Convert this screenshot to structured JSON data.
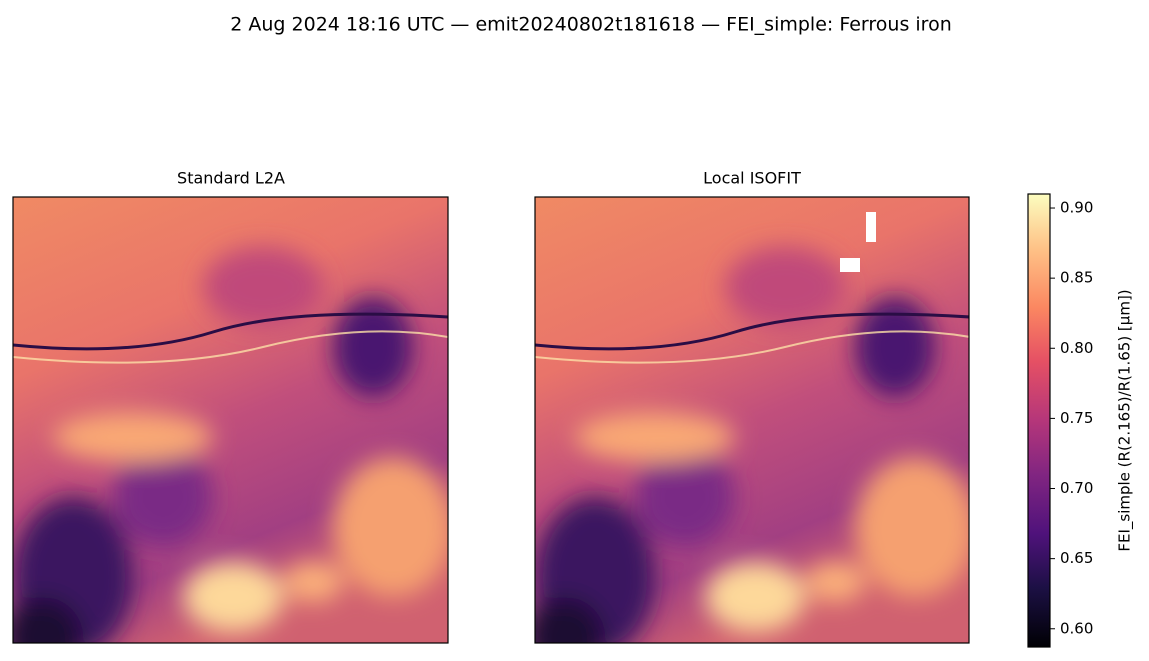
{
  "chart_data": {
    "type": "image",
    "title": "2 Aug 2024 18:16 UTC — emit20240802t181618 — FEI_simple: Ferrous iron",
    "panels": [
      "Standard L2A",
      "Local ISOFIT"
    ],
    "colormap": "magma",
    "colorbar_label": "FEI_simple  (R(2.165)/R(1.65)  [µm])",
    "clim": [
      0.587,
      0.91
    ],
    "cticks": [
      {
        "value": 0.6,
        "label": "0.60"
      },
      0.65,
      {
        "value": 0.7,
        "label": "0.70"
      },
      0.75,
      {
        "value": 0.8,
        "label": "0.80"
      },
      0.85,
      {
        "value": 0.9,
        "label": "0.90"
      }
    ]
  }
}
